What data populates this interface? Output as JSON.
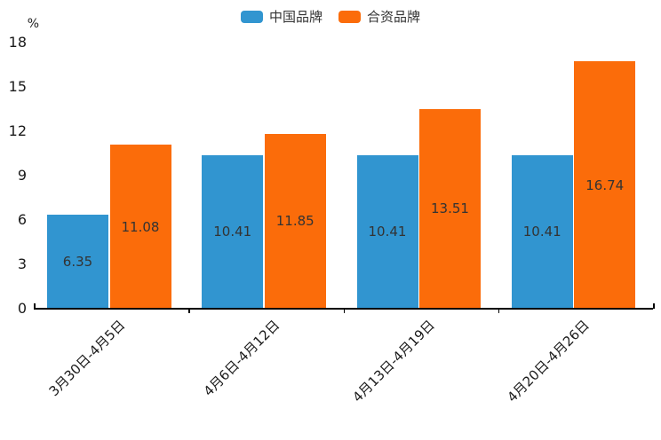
{
  "chart_data": {
    "type": "bar",
    "title": "",
    "categories": [
      "3月30日-4月5日",
      "4月6日-4月12日",
      "4月13日-4月19日",
      "4月20日-4月26日"
    ],
    "series": [
      {
        "name": "中国品牌",
        "color": "#3195D0",
        "values": [
          6.35,
          10.41,
          10.41,
          10.41
        ]
      },
      {
        "name": "合资品牌",
        "color": "#FB6C0A",
        "values": [
          11.08,
          11.85,
          13.51,
          16.74
        ]
      }
    ],
    "unit": "%",
    "ylim": [
      0,
      18
    ],
    "yticks": [
      0,
      3,
      6,
      9,
      12,
      15,
      18
    ],
    "grid": false,
    "legend_position": "top",
    "value_label_position": "inside-center",
    "value_label_color": "#333333",
    "axis_color": "#000000"
  }
}
